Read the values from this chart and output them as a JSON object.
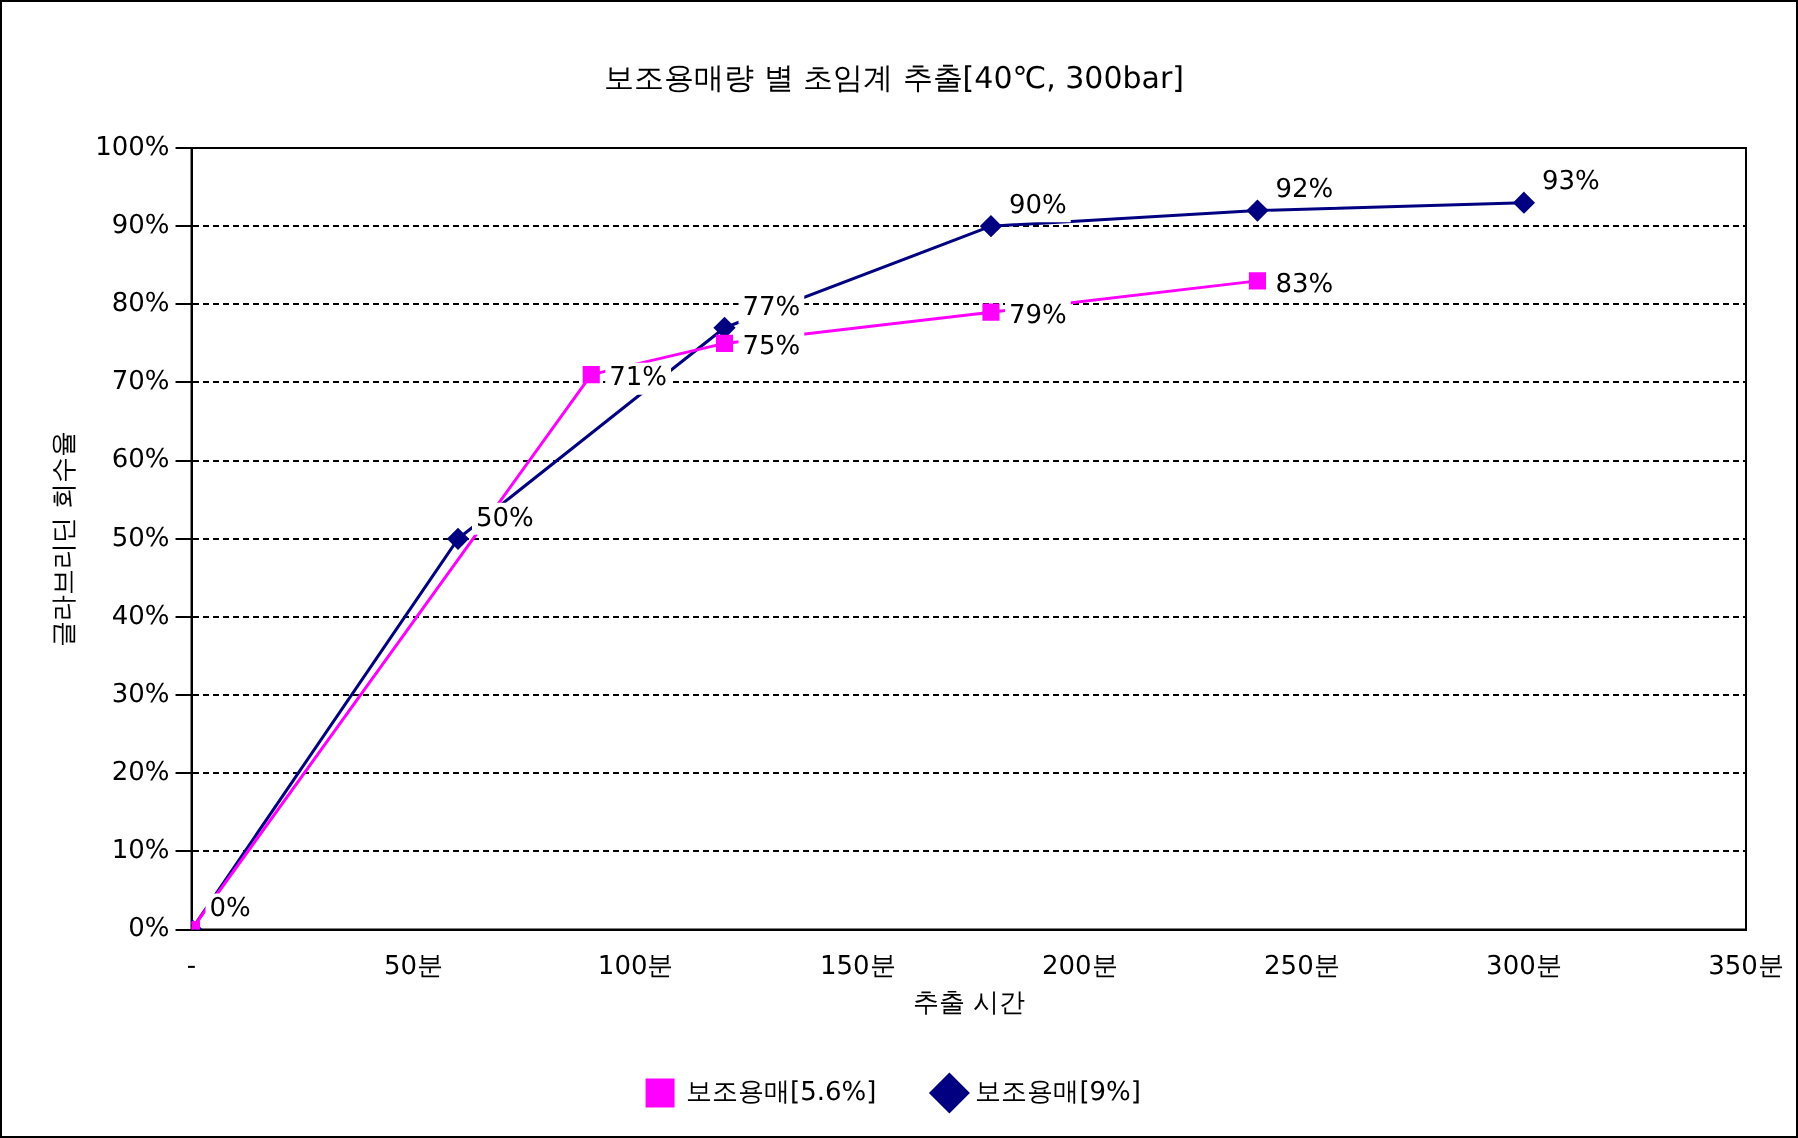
{
  "chart_data": {
    "type": "line",
    "title": "보조용매량 별 초임계 추출[40℃, 300bar]",
    "xlabel": "추출 시간",
    "ylabel": "글라브리딘 회수율",
    "xlim": [
      0,
      350
    ],
    "xticks": [
      {
        "value": 0,
        "label": "-"
      },
      {
        "value": 50,
        "label": "50분"
      },
      {
        "value": 100,
        "label": "100분"
      },
      {
        "value": 150,
        "label": "150분"
      },
      {
        "value": 200,
        "label": "200분"
      },
      {
        "value": 250,
        "label": "250분"
      },
      {
        "value": 300,
        "label": "300분"
      },
      {
        "value": 350,
        "label": "350분"
      }
    ],
    "ylim": [
      0,
      100
    ],
    "yticks": [
      {
        "value": 0,
        "label": "0%"
      },
      {
        "value": 10,
        "label": "10%"
      },
      {
        "value": 20,
        "label": "20%"
      },
      {
        "value": 30,
        "label": "30%"
      },
      {
        "value": 40,
        "label": "40%"
      },
      {
        "value": 50,
        "label": "50%"
      },
      {
        "value": 60,
        "label": "60%"
      },
      {
        "value": 70,
        "label": "70%"
      },
      {
        "value": 80,
        "label": "80%"
      },
      {
        "value": 90,
        "label": "90%"
      },
      {
        "value": 100,
        "label": "100%"
      }
    ],
    "grid": "y",
    "line_style": "solid",
    "legend": "bottom",
    "series": [
      {
        "name": "보조용매[5.6%]",
        "color": "#ff00ff",
        "marker": "square",
        "x": [
          0,
          90,
          120,
          180,
          240
        ],
        "values": [
          0,
          71,
          75,
          79,
          83
        ],
        "value_labels": [
          null,
          "71%",
          "75%",
          "79%",
          "83%"
        ]
      },
      {
        "name": "보조용매[9%]",
        "color": "#000080",
        "marker": "diamond",
        "x": [
          0,
          60,
          120,
          180,
          240,
          300
        ],
        "values": [
          0,
          50,
          77,
          90,
          92,
          93
        ],
        "value_labels": [
          "0%",
          "50%",
          "77%",
          "90%",
          "92%",
          "93%"
        ]
      }
    ]
  }
}
